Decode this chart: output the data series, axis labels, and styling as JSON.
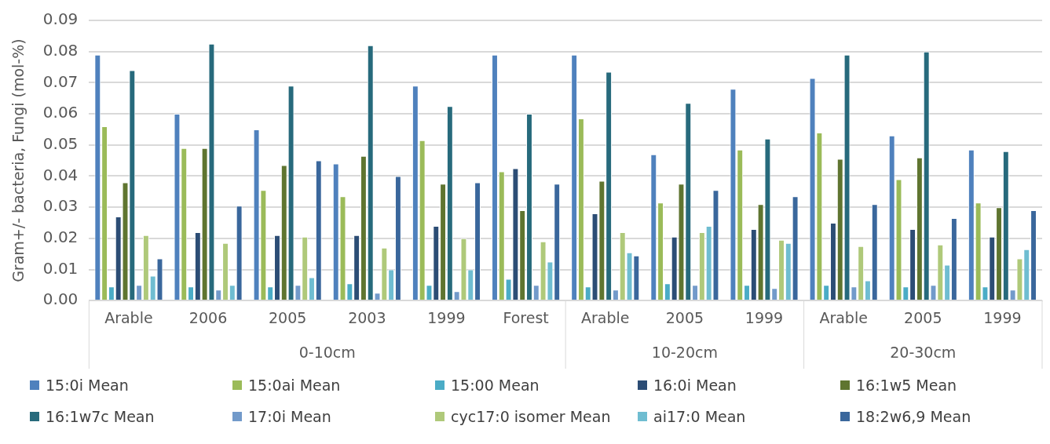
{
  "chart_data": {
    "type": "bar",
    "ylabel": "Gram+/- bacteria, Fungi (mol-%)",
    "categories": [
      "Arable",
      "2006",
      "2005",
      "2003",
      "1999",
      "Forest",
      "Arable",
      "2005",
      "1999",
      "Arable",
      "2005",
      "1999"
    ],
    "annotations": [
      "0-10cm",
      "10-20cm",
      "20-30cm"
    ],
    "series": [
      {
        "name": "15:0i Mean",
        "color": "#4f81bd",
        "values": [
          0.079,
          0.06,
          0.055,
          0.044,
          0.069,
          0.079,
          0.079,
          0.047,
          0.068,
          0.0715,
          0.053,
          0.0485
        ]
      },
      {
        "name": "15:0ai Mean",
        "color": "#9bbb59",
        "values": [
          0.056,
          0.049,
          0.0355,
          0.0335,
          0.0515,
          0.0415,
          0.0585,
          0.0315,
          0.0485,
          0.054,
          0.039,
          0.0315
        ]
      },
      {
        "name": "15:00 Mean",
        "color": "#4bacc6",
        "values": [
          0.0045,
          0.0045,
          0.0045,
          0.0055,
          0.005,
          0.007,
          0.0045,
          0.0055,
          0.005,
          0.005,
          0.0045,
          0.0045
        ]
      },
      {
        "name": "16:0i Mean",
        "color": "#2c4d75",
        "values": [
          0.027,
          0.022,
          0.021,
          0.021,
          0.024,
          0.0425,
          0.028,
          0.0205,
          0.023,
          0.025,
          0.023,
          0.0205
        ]
      },
      {
        "name": "16:1w5 Mean",
        "color": "#5f7530",
        "values": [
          0.038,
          0.049,
          0.0435,
          0.0465,
          0.0375,
          0.029,
          0.0385,
          0.0375,
          0.031,
          0.0455,
          0.046,
          0.03
        ]
      },
      {
        "name": "16:1w7c Mean",
        "color": "#276a7c",
        "values": [
          0.074,
          0.0825,
          0.069,
          0.082,
          0.0625,
          0.06,
          0.0735,
          0.0635,
          0.052,
          0.079,
          0.08,
          0.048
        ]
      },
      {
        "name": "17:0i Mean",
        "color": "#729aca",
        "values": [
          0.005,
          0.0035,
          0.005,
          0.0025,
          0.003,
          0.005,
          0.0035,
          0.005,
          0.004,
          0.0045,
          0.005,
          0.0035
        ]
      },
      {
        "name": "cyc17:0 isomer Mean",
        "color": "#afc97a",
        "values": [
          0.021,
          0.0185,
          0.0205,
          0.017,
          0.02,
          0.019,
          0.022,
          0.022,
          0.0195,
          0.0175,
          0.018,
          0.0135
        ]
      },
      {
        "name": "ai17:0 Mean",
        "color": "#6fbdd1",
        "values": [
          0.008,
          0.005,
          0.0075,
          0.01,
          0.01,
          0.0125,
          0.0155,
          0.024,
          0.0185,
          0.0065,
          0.0115,
          0.0165
        ]
      },
      {
        "name": "18:2w6,9 Mean",
        "color": "#3a679c",
        "values": [
          0.0135,
          0.0305,
          0.045,
          0.04,
          0.038,
          0.0375,
          0.0145,
          0.0355,
          0.0335,
          0.031,
          0.0265,
          0.029
        ]
      }
    ],
    "ylim": [
      0,
      0.09
    ],
    "yticks": [
      {
        "value": 0,
        "label": "0.00"
      },
      {
        "value": 0.01,
        "label": "0.01"
      },
      {
        "value": 0.02,
        "label": "0.02"
      },
      {
        "value": 0.03,
        "label": "0.03"
      },
      {
        "value": 0.04,
        "label": "0.04"
      },
      {
        "value": 0.05,
        "label": "0.05"
      },
      {
        "value": 0.06,
        "label": "0.06"
      },
      {
        "value": 0.07,
        "label": "0.07"
      },
      {
        "value": 0.08,
        "label": "0.08"
      },
      {
        "value": 0.09,
        "label": "0.09"
      }
    ],
    "grid": "y",
    "legend": "bottom"
  }
}
